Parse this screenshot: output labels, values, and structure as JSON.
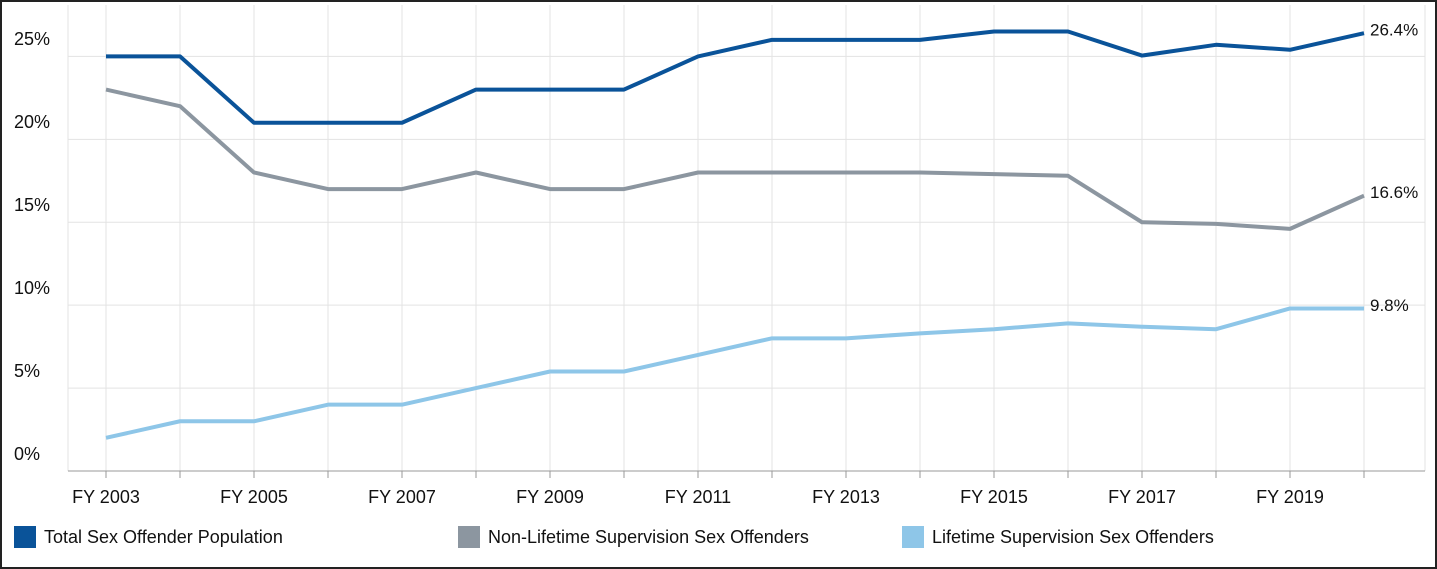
{
  "chart_data": {
    "type": "line",
    "categories": [
      "FY 2003",
      null,
      "FY 2005",
      null,
      "FY 2007",
      null,
      "FY 2009",
      null,
      "FY 2011",
      null,
      "FY 2013",
      null,
      "FY 2015",
      null,
      "FY 2017",
      null,
      "FY 2019",
      null
    ],
    "series": [
      {
        "name": "Total Sex Offender Population",
        "color": "#0a5399",
        "values": [
          25,
          25,
          21,
          21,
          21,
          23,
          23,
          23,
          25,
          26,
          26,
          26,
          26.5,
          26.5,
          25.05,
          25.7,
          25.4,
          26.4
        ],
        "value_labels": [
          null,
          null,
          null,
          null,
          null,
          null,
          null,
          null,
          null,
          null,
          null,
          null,
          null,
          null,
          null,
          null,
          null,
          "26.4%"
        ]
      },
      {
        "name": "Non-Lifetime Supervision Sex Offenders",
        "color": "#8c96a0",
        "values": [
          23,
          22,
          18,
          17,
          17,
          18,
          17,
          17,
          18,
          18,
          18,
          18,
          17.9,
          17.8,
          15,
          14.9,
          14.6,
          16.6
        ],
        "value_labels": [
          null,
          null,
          null,
          null,
          null,
          null,
          null,
          null,
          null,
          null,
          null,
          null,
          null,
          null,
          null,
          null,
          null,
          "16.6%"
        ]
      },
      {
        "name": "Lifetime Supervision Sex Offenders",
        "color": "#8ec6e8",
        "values": [
          2,
          3,
          3,
          4,
          4,
          5,
          6,
          6,
          7,
          8,
          8,
          8.3,
          8.55,
          8.9,
          8.7,
          8.55,
          9.8,
          9.8
        ],
        "value_labels": [
          null,
          null,
          null,
          null,
          null,
          null,
          null,
          null,
          null,
          null,
          null,
          null,
          null,
          null,
          null,
          null,
          null,
          "9.8%"
        ]
      }
    ],
    "ylim": [
      0,
      28.1
    ],
    "yticks": [
      {
        "value": 0,
        "label": "0%"
      },
      {
        "value": 5,
        "label": "5%"
      },
      {
        "value": 10,
        "label": "10%"
      },
      {
        "value": 15,
        "label": "15%"
      },
      {
        "value": 20,
        "label": "20%"
      },
      {
        "value": 25,
        "label": "25%"
      }
    ],
    "grid": true,
    "legend": "bottom"
  }
}
